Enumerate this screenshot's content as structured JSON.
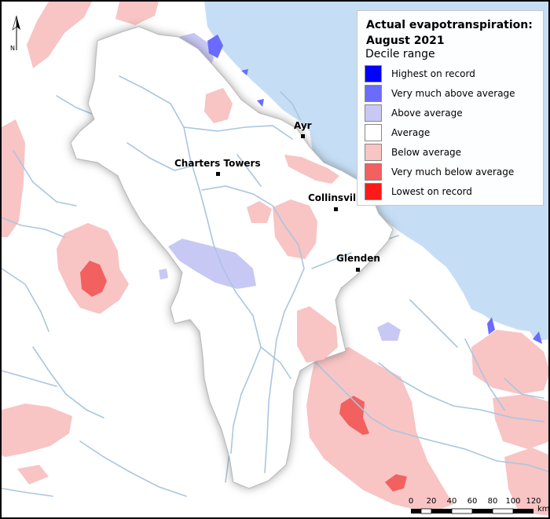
{
  "legend": {
    "title_line1": "Actual evapotranspiration:",
    "title_line2": "August 2021",
    "subtitle": "Decile range",
    "items": [
      {
        "label": "Highest on record",
        "color": "#0000ff"
      },
      {
        "label": "Very much above average",
        "color": "#6b6bff"
      },
      {
        "label": "Above average",
        "color": "#c8c8f5"
      },
      {
        "label": "Average",
        "color": "#ffffff"
      },
      {
        "label": "Below average",
        "color": "#f8c4c4"
      },
      {
        "label": "Very much below average",
        "color": "#f26060"
      },
      {
        "label": "Lowest on record",
        "color": "#ff1a1a"
      }
    ]
  },
  "towns": {
    "ayr": "Ayr",
    "charters_towers": "Charters Towers",
    "collinsville": "Collinsvil",
    "glenden": "Glenden"
  },
  "north_arrow": {
    "label": "N"
  },
  "scale_bar": {
    "ticks": [
      "0",
      "20",
      "40",
      "60",
      "80",
      "100",
      "120"
    ],
    "unit": "km"
  },
  "colors": {
    "sea": "#c6def5",
    "river": "#a9c6e0",
    "catchment_shadow": "#4a4a4a"
  }
}
